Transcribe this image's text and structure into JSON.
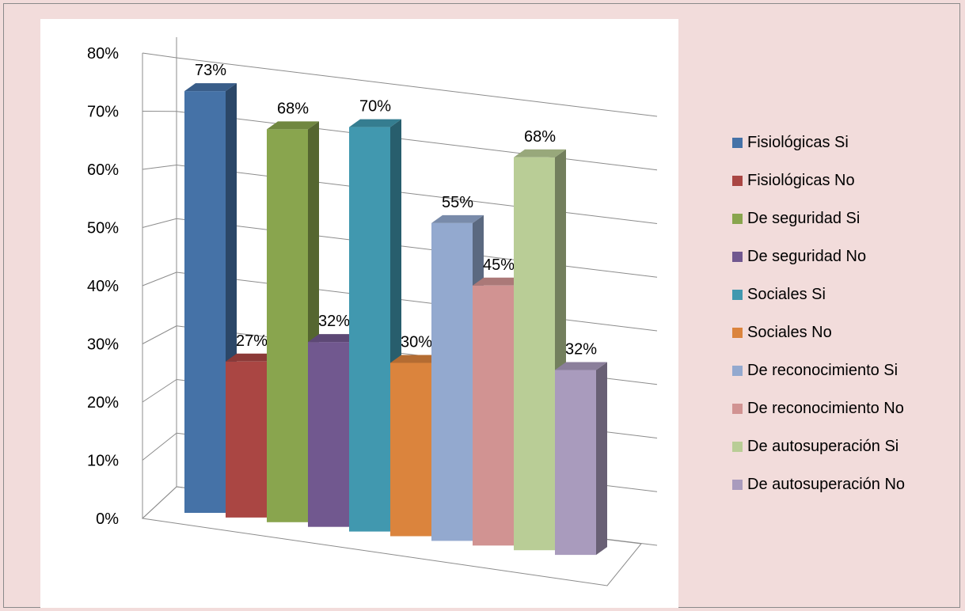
{
  "chart_data": {
    "type": "bar",
    "categories": [
      "Fisiológicas Si",
      "Fisiológicas No",
      "De seguridad Si",
      "De seguridad No",
      "Sociales Si",
      "Sociales No",
      "De reconocimiento Si",
      "De reconocimiento No",
      "De autosuperación Si",
      "De autosuperación No"
    ],
    "values": [
      73,
      27,
      68,
      32,
      70,
      30,
      55,
      45,
      68,
      32
    ],
    "data_labels": [
      "73%",
      "27%",
      "68%",
      "32%",
      "70%",
      "30%",
      "55%",
      "45%",
      "68%",
      "32%"
    ],
    "colors": [
      "#4572a7",
      "#aa4643",
      "#89a54e",
      "#71588f",
      "#4198af",
      "#db843d",
      "#93a9cf",
      "#d19392",
      "#b9cd96",
      "#a99bbd"
    ],
    "ylim": [
      0,
      80
    ],
    "y_ticks": [
      "0%",
      "10%",
      "20%",
      "30%",
      "40%",
      "50%",
      "60%",
      "70%",
      "80%"
    ],
    "grid": true,
    "legend_position": "right",
    "style": "3d-column"
  }
}
